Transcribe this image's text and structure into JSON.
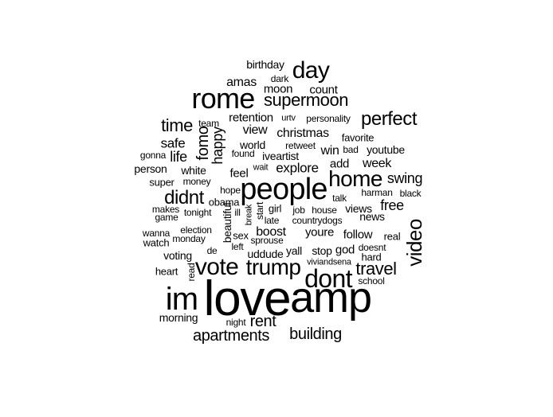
{
  "word_cloud": {
    "words": [
      {
        "text": "love",
        "weight": 62
      },
      {
        "text": "amp",
        "weight": 54
      },
      {
        "text": "im",
        "weight": 40
      },
      {
        "text": "people",
        "weight": 38
      },
      {
        "text": "rome",
        "weight": 36
      },
      {
        "text": "dont",
        "weight": 32
      },
      {
        "text": "day",
        "weight": 30
      },
      {
        "text": "vote",
        "weight": 30
      },
      {
        "text": "trump",
        "weight": 28
      },
      {
        "text": "home",
        "weight": 28
      },
      {
        "text": "video",
        "weight": 26
      },
      {
        "text": "perfect",
        "weight": 24
      },
      {
        "text": "didnt",
        "weight": 24
      },
      {
        "text": "travel",
        "weight": 22
      },
      {
        "text": "supermoon",
        "weight": 22
      },
      {
        "text": "time",
        "weight": 22
      },
      {
        "text": "apartments",
        "weight": 20
      },
      {
        "text": "building",
        "weight": 20
      },
      {
        "text": "rent",
        "weight": 20
      },
      {
        "text": "fomo",
        "weight": 20
      },
      {
        "text": "happy",
        "weight": 18
      },
      {
        "text": "life",
        "weight": 18
      },
      {
        "text": "safe",
        "weight": 17
      },
      {
        "text": "explore",
        "weight": 17
      },
      {
        "text": "swing",
        "weight": 18
      },
      {
        "text": "free",
        "weight": 18
      },
      {
        "text": "week",
        "weight": 16
      },
      {
        "text": "win",
        "weight": 16
      },
      {
        "text": "amas",
        "weight": 16
      },
      {
        "text": "count",
        "weight": 15
      },
      {
        "text": "christmas",
        "weight": 16
      },
      {
        "text": "view",
        "weight": 16
      },
      {
        "text": "retention",
        "weight": 15
      },
      {
        "text": "boost",
        "weight": 16
      },
      {
        "text": "youre",
        "weight": 15
      },
      {
        "text": "follow",
        "weight": 15
      },
      {
        "text": "god",
        "weight": 15
      },
      {
        "text": "stop",
        "weight": 14
      },
      {
        "text": "moon",
        "weight": 15
      },
      {
        "text": "birthday",
        "weight": 14
      },
      {
        "text": "world",
        "weight": 14
      },
      {
        "text": "feel",
        "weight": 15
      },
      {
        "text": "add",
        "weight": 15
      },
      {
        "text": "youtube",
        "weight": 14
      },
      {
        "text": "beautiful",
        "weight": 14
      },
      {
        "text": "white",
        "weight": 14
      },
      {
        "text": "person",
        "weight": 14
      },
      {
        "text": "news",
        "weight": 14
      },
      {
        "text": "views",
        "weight": 14
      },
      {
        "text": "voting",
        "weight": 14
      },
      {
        "text": "morning",
        "weight": 14
      },
      {
        "text": "watch",
        "weight": 13
      },
      {
        "text": "uddude",
        "weight": 14
      },
      {
        "text": "yall",
        "weight": 14
      },
      {
        "text": "iveartist",
        "weight": 14
      },
      {
        "text": "girl",
        "weight": 13
      },
      {
        "text": "favorite",
        "weight": 13
      },
      {
        "text": "retweet",
        "weight": 12
      },
      {
        "text": "personality",
        "weight": 12
      },
      {
        "text": "urtv",
        "weight": 11
      },
      {
        "text": "team",
        "weight": 12
      },
      {
        "text": "dark",
        "weight": 12
      },
      {
        "text": "gonna",
        "weight": 12
      },
      {
        "text": "found",
        "weight": 12
      },
      {
        "text": "wait",
        "weight": 11
      },
      {
        "text": "bad",
        "weight": 12
      },
      {
        "text": "super",
        "weight": 13
      },
      {
        "text": "money",
        "weight": 12
      },
      {
        "text": "hope",
        "weight": 12
      },
      {
        "text": "obama",
        "weight": 13
      },
      {
        "text": "talk",
        "weight": 12
      },
      {
        "text": "harman",
        "weight": 12
      },
      {
        "text": "black",
        "weight": 12
      },
      {
        "text": "makes",
        "weight": 12
      },
      {
        "text": "tonight",
        "weight": 12
      },
      {
        "text": "game",
        "weight": 12
      },
      {
        "text": "ill",
        "weight": 12
      },
      {
        "text": "break",
        "weight": 11
      },
      {
        "text": "start",
        "weight": 12
      },
      {
        "text": "late",
        "weight": 12
      },
      {
        "text": "job",
        "weight": 12
      },
      {
        "text": "house",
        "weight": 12
      },
      {
        "text": "countrydogs",
        "weight": 12
      },
      {
        "text": "wanna",
        "weight": 12
      },
      {
        "text": "election",
        "weight": 12
      },
      {
        "text": "monday",
        "weight": 12
      },
      {
        "text": "sex",
        "weight": 13
      },
      {
        "text": "sprouse",
        "weight": 12
      },
      {
        "text": "de",
        "weight": 12
      },
      {
        "text": "left",
        "weight": 12
      },
      {
        "text": "real",
        "weight": 13
      },
      {
        "text": "doesnt",
        "weight": 12
      },
      {
        "text": "hard",
        "weight": 13
      },
      {
        "text": "viviandsena",
        "weight": 11
      },
      {
        "text": "read",
        "weight": 12
      },
      {
        "text": "heart",
        "weight": 13
      },
      {
        "text": "school",
        "weight": 12
      },
      {
        "text": "night",
        "weight": 12
      }
    ]
  }
}
